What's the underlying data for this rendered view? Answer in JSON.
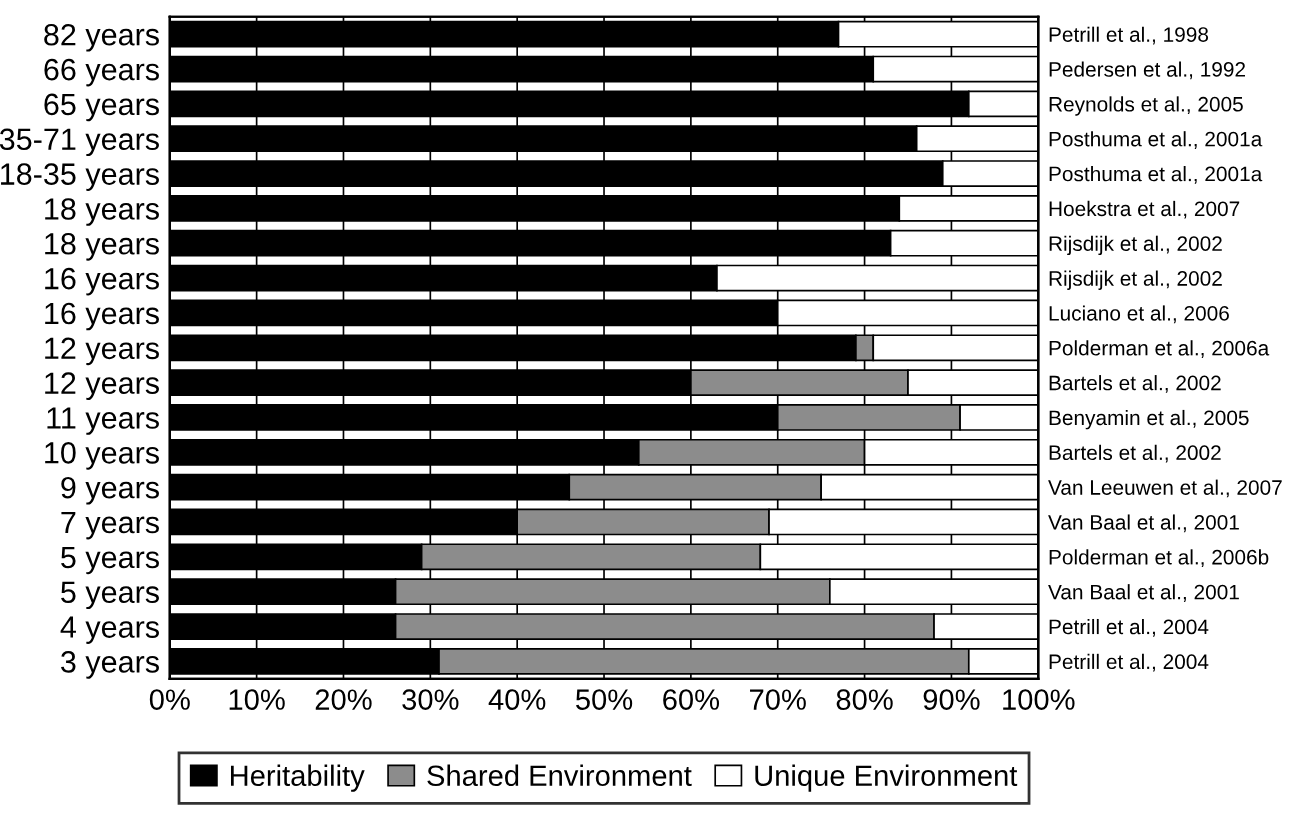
{
  "chart_data": {
    "type": "bar",
    "orientation": "horizontal",
    "stacked": true,
    "categories": [
      "82 years",
      "66 years",
      "65 years",
      "35-71 years",
      "18-35 years",
      "18 years",
      "18 years",
      "16 years",
      "16 years",
      "12 years",
      "12 years",
      "11 years",
      "10 years",
      "9 years",
      "7 years",
      "5 years",
      "5 years",
      "4 years",
      "3 years"
    ],
    "y2_categories": [
      "Petrill et al., 1998",
      "Pedersen et al., 1992",
      "Reynolds et al., 2005",
      "Posthuma et al., 2001a",
      "Posthuma et al., 2001a",
      "Hoekstra et al., 2007",
      "Rijsdijk et al., 2002",
      "Rijsdijk et al., 2002",
      "Luciano et al., 2006",
      "Polderman et al., 2006a",
      "Bartels et al., 2002",
      "Benyamin et al., 2005",
      "Bartels et al., 2002",
      "Van Leeuwen et al., 2007",
      "Van Baal et al., 2001",
      "Polderman et al., 2006b",
      "Van Baal et al., 2001",
      "Petrill et al., 2004",
      "Petrill et al., 2004"
    ],
    "series": [
      {
        "name": "Heritability",
        "color": "#000000",
        "values": [
          77,
          81,
          92,
          86,
          89,
          84,
          83,
          63,
          70,
          79,
          60,
          70,
          54,
          46,
          40,
          29,
          26,
          26,
          31
        ]
      },
      {
        "name": "Shared Environment",
        "color": "#8c8c8c",
        "values": [
          0,
          0,
          0,
          0,
          0,
          0,
          0,
          0,
          0,
          2,
          25,
          21,
          26,
          29,
          29,
          39,
          50,
          62,
          61
        ]
      },
      {
        "name": "Unique Environment",
        "color": "#ffffff",
        "values": [
          23,
          19,
          8,
          14,
          11,
          16,
          17,
          37,
          30,
          19,
          15,
          9,
          20,
          25,
          31,
          32,
          24,
          12,
          8
        ]
      }
    ],
    "xlim": [
      0,
      100
    ],
    "xticks": [
      {
        "value": 0,
        "label": "0%"
      },
      {
        "value": 10,
        "label": "10%"
      },
      {
        "value": 20,
        "label": "20%"
      },
      {
        "value": 30,
        "label": "30%"
      },
      {
        "value": 40,
        "label": "40%"
      },
      {
        "value": 50,
        "label": "50%"
      },
      {
        "value": 60,
        "label": "60%"
      },
      {
        "value": 70,
        "label": "70%"
      },
      {
        "value": 80,
        "label": "80%"
      },
      {
        "value": 90,
        "label": "90%"
      },
      {
        "value": 100,
        "label": "100%"
      }
    ],
    "grid": "x",
    "legend": "bottom"
  }
}
